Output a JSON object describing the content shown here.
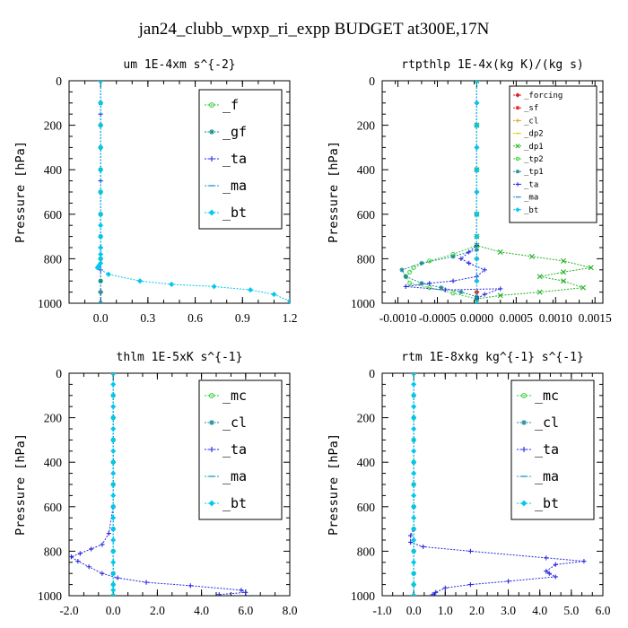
{
  "figure": {
    "title": "jan24_clubb_wpxp_ri_expp  BUDGET at300E,17N"
  },
  "chart_data": [
    {
      "type": "line",
      "title": "um  1E-4xm s^{-2}",
      "ylabel": "Pressure [hPa]",
      "xlim": [
        -0.2,
        1.2
      ],
      "ylim": [
        1000,
        0
      ],
      "xticks": [
        "0.0",
        "0.3",
        "0.6",
        "0.9",
        "1.2"
      ],
      "xtick_values": [
        0.0,
        0.3,
        0.6,
        0.9,
        1.2
      ],
      "yticks": [
        "0",
        "200",
        "400",
        "600",
        "800",
        "1000"
      ],
      "ytick_values": [
        0,
        200,
        400,
        600,
        800,
        1000
      ],
      "legend_position": "top-right",
      "series": [
        {
          "name": "_f",
          "color": "#22cc22",
          "marker": "circle",
          "x": [
            0,
            0,
            0,
            0,
            0,
            0,
            0,
            0,
            0,
            0,
            0,
            0
          ],
          "y": [
            0,
            100,
            200,
            300,
            400,
            500,
            600,
            700,
            800,
            900,
            950,
            1000
          ]
        },
        {
          "name": "_gf",
          "color": "#108a8a",
          "marker": "star",
          "x": [
            0,
            0,
            0,
            0,
            0,
            0,
            0,
            0,
            0,
            0,
            0
          ],
          "y": [
            0,
            100,
            200,
            300,
            400,
            500,
            600,
            700,
            800,
            900,
            1000
          ]
        },
        {
          "name": "_ta",
          "color": "#2a2ae0",
          "marker": "plus",
          "x": [
            0,
            0,
            0,
            0,
            0,
            0,
            0,
            0,
            0
          ],
          "y": [
            0,
            150,
            300,
            450,
            600,
            750,
            850,
            950,
            1000
          ]
        },
        {
          "name": "_ma",
          "color": "#2a9ad8",
          "marker": "dash",
          "x": [
            0,
            0,
            0,
            0,
            0,
            0
          ],
          "y": [
            0,
            200,
            400,
            600,
            800,
            1000
          ]
        },
        {
          "name": "_bt",
          "color": "#00c8f0",
          "marker": "diamond",
          "x": [
            0,
            0,
            0,
            0,
            0,
            0,
            0,
            0,
            0,
            0,
            0,
            0,
            0,
            -0.01,
            -0.02,
            0.05,
            0.25,
            0.45,
            0.72,
            0.95,
            1.1,
            1.2
          ],
          "y": [
            0,
            100,
            200,
            300,
            400,
            500,
            600,
            650,
            700,
            750,
            780,
            800,
            820,
            830,
            840,
            870,
            900,
            915,
            925,
            940,
            960,
            990
          ]
        }
      ]
    },
    {
      "type": "line",
      "title": "rtpthlp  1E-4x(kg K)/(kg s)",
      "ylabel": "Pressure [hPa]",
      "xlim": [
        -0.0012,
        0.0016
      ],
      "ylim": [
        1000,
        0
      ],
      "xticks": [
        "-0.0010",
        "-0.0005",
        "0.0000",
        "0.0005",
        "0.0010",
        "0.0015"
      ],
      "xtick_values": [
        -0.001,
        -0.0005,
        0.0,
        0.0005,
        0.001,
        0.0015
      ],
      "yticks": [
        "0",
        "200",
        "400",
        "600",
        "800",
        "1000"
      ],
      "ytick_values": [
        0,
        200,
        400,
        600,
        800,
        1000
      ],
      "legend_position": "top-right",
      "series": [
        {
          "name": "_forcing",
          "color": "#d81e1e",
          "marker": "diamond",
          "x": [
            0,
            0,
            0,
            0,
            0,
            0,
            0,
            0,
            0,
            0,
            0,
            0
          ],
          "y": [
            0,
            100,
            200,
            300,
            400,
            500,
            600,
            700,
            800,
            900,
            950,
            1000
          ]
        },
        {
          "name": "_sf",
          "color": "#e82020",
          "marker": "star",
          "x": [
            0,
            0,
            0,
            0,
            0,
            0
          ],
          "y": [
            0,
            200,
            400,
            600,
            800,
            1000
          ]
        },
        {
          "name": "_cl",
          "color": "#f0a020",
          "marker": "plus",
          "x": [
            0,
            0,
            0,
            0,
            0,
            0
          ],
          "y": [
            0,
            200,
            400,
            600,
            800,
            1000
          ]
        },
        {
          "name": "_dp2",
          "color": "#e0d000",
          "marker": "dash",
          "x": [
            0,
            0,
            0,
            0,
            0,
            0
          ],
          "y": [
            0,
            200,
            400,
            600,
            800,
            1000
          ]
        },
        {
          "name": "_dp1",
          "color": "#20b020",
          "marker": "x",
          "x": [
            0,
            0,
            0,
            0,
            0,
            0,
            0.0003,
            0.0007,
            0.0011,
            0.00145,
            0.0011,
            0.0008,
            0.0011,
            0.00135,
            0.0008,
            0.0003,
            0
          ],
          "y": [
            0,
            200,
            400,
            600,
            700,
            740,
            770,
            790,
            810,
            840,
            860,
            880,
            900,
            930,
            950,
            965,
            980
          ]
        },
        {
          "name": "_tp2",
          "color": "#40d040",
          "marker": "circle",
          "x": [
            0,
            0,
            0,
            0,
            0,
            -0.0003,
            -0.0006,
            -0.0008,
            -0.00085,
            -0.0009,
            -0.00085,
            -0.0006,
            -0.0003,
            0
          ],
          "y": [
            0,
            200,
            400,
            600,
            740,
            780,
            810,
            840,
            860,
            880,
            910,
            930,
            955,
            980
          ]
        },
        {
          "name": "_tp1",
          "color": "#1a8a9a",
          "marker": "star",
          "x": [
            0,
            0,
            0,
            0,
            0,
            -0.0003,
            -0.0007,
            -0.00095,
            -0.0009,
            -0.0007,
            -0.00045,
            -0.0002,
            0
          ],
          "y": [
            0,
            200,
            400,
            600,
            760,
            790,
            820,
            850,
            880,
            910,
            930,
            950,
            970
          ]
        },
        {
          "name": "_ta",
          "color": "#2a2ae0",
          "marker": "plus",
          "x": [
            0,
            0,
            0,
            0,
            0,
            -0.0001,
            -0.0002,
            -0.0001,
            0.0001,
            0,
            -0.0003,
            -0.0006,
            -0.0009,
            -0.0004,
            0.0003,
            0.0001,
            0
          ],
          "y": [
            0,
            200,
            400,
            600,
            740,
            770,
            800,
            820,
            850,
            880,
            900,
            910,
            925,
            940,
            935,
            960,
            980
          ]
        },
        {
          "name": "_ma",
          "color": "#2a9ad8",
          "marker": "dash",
          "x": [
            0,
            0,
            0,
            0,
            0,
            0
          ],
          "y": [
            0,
            200,
            400,
            600,
            800,
            1000
          ]
        },
        {
          "name": "_bt",
          "color": "#00c8f0",
          "marker": "diamond",
          "x": [
            0,
            0,
            0,
            0,
            0,
            0,
            0,
            0,
            0,
            0,
            0
          ],
          "y": [
            0,
            100,
            200,
            300,
            400,
            500,
            600,
            700,
            800,
            900,
            1000
          ]
        }
      ]
    },
    {
      "type": "line",
      "title": "thlm  1E-5xK s^{-1}",
      "ylabel": "Pressure [hPa]",
      "xlim": [
        -2.0,
        8.0
      ],
      "ylim": [
        1000,
        0
      ],
      "xticks": [
        "-2.0",
        "0.0",
        "2.0",
        "4.0",
        "6.0",
        "8.0"
      ],
      "xtick_values": [
        -2.0,
        0.0,
        2.0,
        4.0,
        6.0,
        8.0
      ],
      "yticks": [
        "0",
        "200",
        "400",
        "600",
        "800",
        "1000"
      ],
      "ytick_values": [
        0,
        200,
        400,
        600,
        800,
        1000
      ],
      "legend_position": "top-right",
      "series": [
        {
          "name": "_mc",
          "color": "#22cc22",
          "marker": "circle",
          "x": [
            0,
            0,
            0,
            0,
            0,
            0,
            0,
            0,
            0,
            0,
            0,
            0
          ],
          "y": [
            0,
            100,
            200,
            300,
            400,
            500,
            600,
            700,
            800,
            900,
            950,
            1000
          ]
        },
        {
          "name": "_cl",
          "color": "#1a8a9a",
          "marker": "star",
          "x": [
            0,
            0,
            0,
            0,
            0,
            0,
            0,
            0,
            0,
            0,
            0
          ],
          "y": [
            0,
            100,
            200,
            300,
            400,
            500,
            600,
            700,
            800,
            900,
            1000
          ]
        },
        {
          "name": "_ta",
          "color": "#2a2ae0",
          "marker": "plus",
          "x": [
            0,
            0,
            0,
            0,
            0,
            -0.2,
            -0.5,
            -1.0,
            -1.5,
            -1.9,
            -1.6,
            -1.1,
            -0.5,
            0.2,
            1.5,
            3.5,
            5.8,
            6.0,
            4.8
          ],
          "y": [
            0,
            150,
            300,
            450,
            600,
            720,
            770,
            790,
            810,
            825,
            845,
            870,
            900,
            920,
            940,
            955,
            975,
            985,
            995
          ]
        },
        {
          "name": "_ma",
          "color": "#2a9ad8",
          "marker": "dash",
          "x": [
            0,
            0,
            0,
            0,
            0,
            0
          ],
          "y": [
            0,
            200,
            400,
            600,
            800,
            1000
          ]
        },
        {
          "name": "_bt",
          "color": "#00c8f0",
          "marker": "diamond",
          "x": [
            0,
            0,
            0,
            0,
            0,
            0,
            0,
            0,
            0,
            0,
            0,
            0,
            0,
            0,
            0,
            0,
            0,
            0,
            0,
            0,
            0,
            0
          ],
          "y": [
            0,
            50,
            100,
            150,
            200,
            250,
            300,
            350,
            400,
            450,
            500,
            550,
            600,
            650,
            700,
            750,
            800,
            850,
            900,
            950,
            975,
            1000
          ]
        }
      ]
    },
    {
      "type": "line",
      "title": "rtm  1E-8xkg kg^{-1} s^{-1}",
      "ylabel": "Pressure [hPa]",
      "xlim": [
        -1.0,
        6.0
      ],
      "ylim": [
        1000,
        0
      ],
      "xticks": [
        "-1.0",
        "0.0",
        "1.0",
        "2.0",
        "3.0",
        "4.0",
        "5.0",
        "6.0"
      ],
      "xtick_values": [
        -1.0,
        0.0,
        1.0,
        2.0,
        3.0,
        4.0,
        5.0,
        6.0
      ],
      "yticks": [
        "0",
        "200",
        "400",
        "600",
        "800",
        "1000"
      ],
      "ytick_values": [
        0,
        200,
        400,
        600,
        800,
        1000
      ],
      "legend_position": "top-right",
      "series": [
        {
          "name": "_mc",
          "color": "#22cc22",
          "marker": "circle",
          "x": [
            0,
            0,
            0,
            0,
            0,
            0,
            0,
            0,
            0,
            0,
            0,
            0
          ],
          "y": [
            0,
            100,
            200,
            300,
            400,
            500,
            600,
            700,
            800,
            900,
            950,
            1000
          ]
        },
        {
          "name": "_cl",
          "color": "#1a8a9a",
          "marker": "star",
          "x": [
            0,
            0,
            0,
            0,
            0,
            0,
            0,
            0,
            0,
            0,
            0
          ],
          "y": [
            0,
            100,
            200,
            300,
            400,
            500,
            600,
            700,
            800,
            900,
            1000
          ]
        },
        {
          "name": "_ta",
          "color": "#2a2ae0",
          "marker": "plus",
          "x": [
            0,
            0,
            0,
            0,
            0,
            0,
            -0.1,
            -0.1,
            0.3,
            1.8,
            4.2,
            5.4,
            4.5,
            4.2,
            4.3,
            4.5,
            3.0,
            1.8,
            1.0,
            0.7,
            0.6
          ],
          "y": [
            0,
            150,
            300,
            450,
            600,
            700,
            730,
            760,
            780,
            800,
            830,
            845,
            860,
            890,
            900,
            915,
            935,
            950,
            965,
            985,
            995
          ]
        },
        {
          "name": "_ma",
          "color": "#2a9ad8",
          "marker": "dash",
          "x": [
            0,
            0,
            0,
            0,
            0,
            0
          ],
          "y": [
            0,
            200,
            400,
            600,
            800,
            1000
          ]
        },
        {
          "name": "_bt",
          "color": "#00c8f0",
          "marker": "diamond",
          "x": [
            0,
            0,
            0,
            0,
            0,
            0,
            0,
            0,
            0,
            0,
            0,
            0,
            0,
            0,
            0,
            0,
            0,
            0,
            0,
            0,
            0
          ],
          "y": [
            0,
            50,
            100,
            150,
            200,
            250,
            300,
            350,
            400,
            450,
            500,
            550,
            600,
            650,
            700,
            750,
            800,
            850,
            900,
            950,
            1000
          ]
        }
      ]
    }
  ]
}
